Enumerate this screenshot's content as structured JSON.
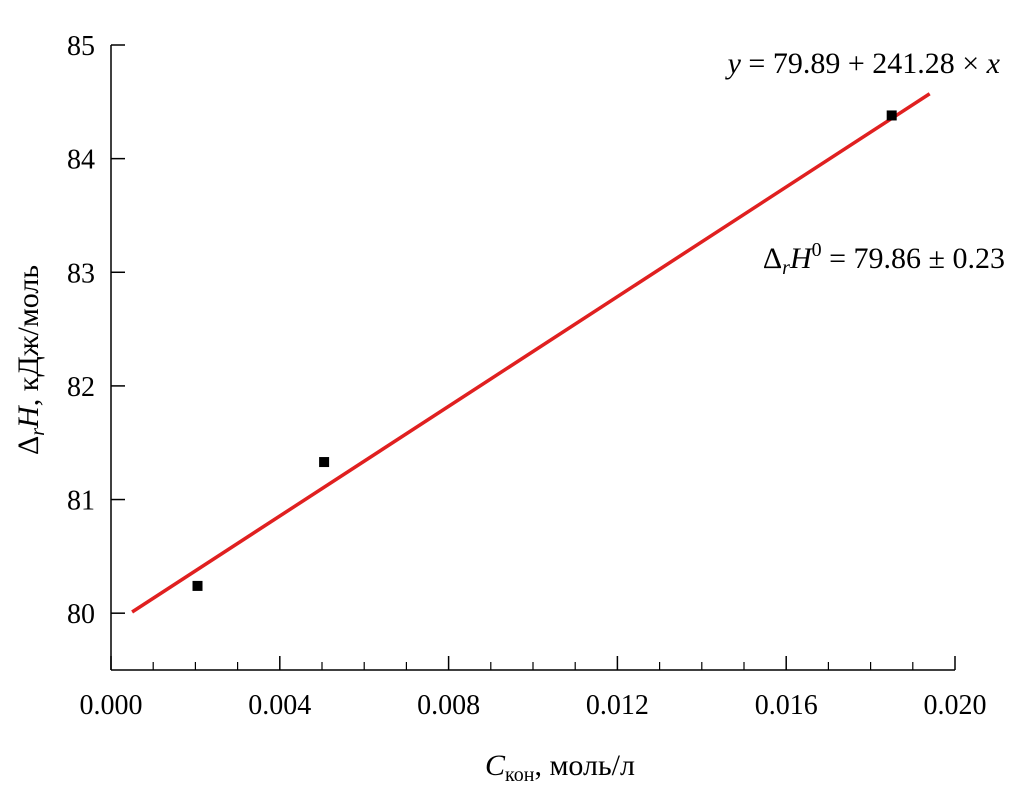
{
  "chart_data": {
    "type": "scatter",
    "title": "",
    "xlabel": {
      "symbol": "C",
      "subscript": "кон",
      "unit": ", моль/л"
    },
    "ylabel": {
      "delta": "Δ",
      "subscript": "r",
      "symbol": "H",
      "unit": ", кДж/моль"
    },
    "xlim": [
      0.0,
      0.02
    ],
    "ylim": [
      79.5,
      85.0
    ],
    "x_ticks": [
      0.0,
      0.004,
      0.008,
      0.012,
      0.016,
      0.02
    ],
    "x_tick_labels": [
      "0.000",
      "0.004",
      "0.008",
      "0.012",
      "0.016",
      "0.020"
    ],
    "x_minor_step": 0.001,
    "y_ticks": [
      80,
      81,
      82,
      83,
      84,
      85
    ],
    "y_tick_labels": [
      "80",
      "81",
      "82",
      "83",
      "84",
      "85"
    ],
    "grid": false,
    "series": [
      {
        "x": [
          0.00205,
          0.00505,
          0.0185
        ],
        "y": [
          80.24,
          81.33,
          84.38
        ],
        "marker": "square",
        "color": "#000000"
      }
    ],
    "fit": {
      "intercept": 79.89,
      "slope": 241.28,
      "x_range": [
        0.0005,
        0.0194
      ],
      "color": "#e02020"
    },
    "annotations": {
      "equation": {
        "y": "y",
        "rest": " = 79.89 + 241.28 × ",
        "x": "x"
      },
      "result": {
        "delta": "Δ",
        "subscript": "r",
        "symbol": "H",
        "superscript": "0",
        "rest": " = 79.86 ± 0.23"
      }
    }
  }
}
